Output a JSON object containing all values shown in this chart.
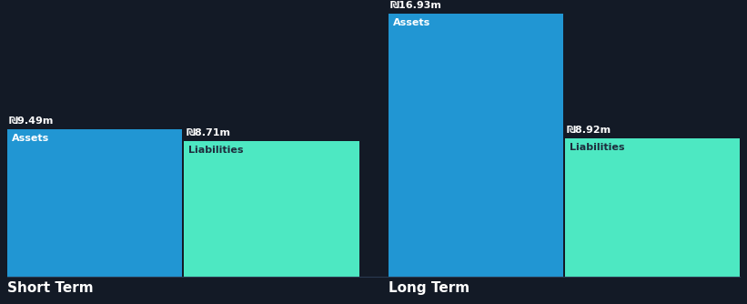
{
  "background_color": "#131a26",
  "bar_color_assets": "#2196d3",
  "bar_color_liabilities": "#4de8c2",
  "text_color_white": "#ffffff",
  "text_color_dark": "#1e2d3d",
  "sections": [
    {
      "label": "Short Term",
      "bars": [
        {
          "name": "Assets",
          "value": 9.49,
          "label": "₪9.49m",
          "type": "assets"
        },
        {
          "name": "Liabilities",
          "value": 8.71,
          "label": "₪8.71m",
          "type": "liabilities"
        }
      ]
    },
    {
      "label": "Long Term",
      "bars": [
        {
          "name": "Assets",
          "value": 16.93,
          "label": "₪16.93m",
          "type": "assets"
        },
        {
          "name": "Liabilities",
          "value": 8.92,
          "label": "₪8.92m",
          "type": "liabilities"
        }
      ]
    }
  ],
  "max_value": 16.93,
  "section_label_fontsize": 11,
  "bar_label_fontsize": 8,
  "inner_label_fontsize": 8,
  "fig_width": 8.21,
  "fig_height": 3.34,
  "dpi": 100
}
